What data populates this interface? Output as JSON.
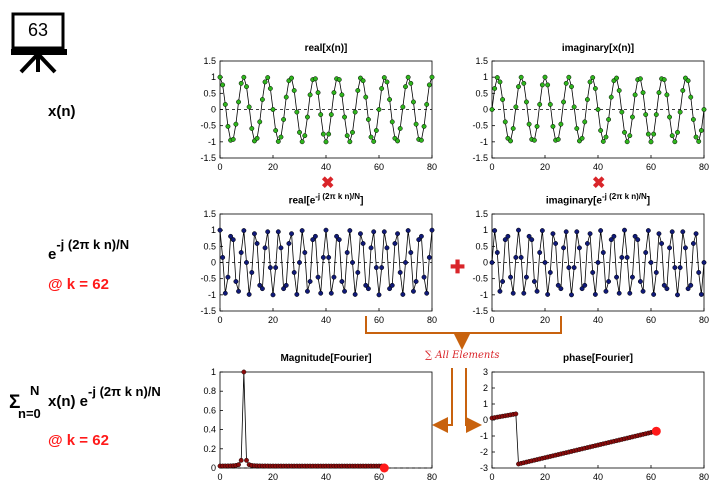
{
  "slide_number": "63",
  "row_labels": {
    "x": "x(n)",
    "kernel_base": "e",
    "kernel_exp": "-j (2π k n)/N",
    "k1": "@ k = 62",
    "sum_sigma": "Σ",
    "sum_top": "N",
    "sum_bottom": "n=0",
    "sum_term": "x(n) e",
    "sum_exp": "-j (2π k n)/N",
    "k2": "@ k = 62"
  },
  "operators": {
    "multiply": "✖",
    "add": "✚",
    "sum_label": "∑ All Elements"
  },
  "plot_titles": {
    "real_x": "real[x(n)]",
    "imag_x": "imaginary[x(n)]",
    "real_e_pre": "real[e",
    "real_e_exp": "-j (2π k n)/N",
    "real_e_post": "]",
    "imag_e_pre": "imaginary[e",
    "imag_e_exp": "-j (2π k n)/N",
    "imag_e_post": "]",
    "mag": "Magnitude[Fourier]",
    "phase": "phase[Fourier]"
  },
  "colors": {
    "green": "#2fb51d",
    "navy": "#101a78",
    "darkred": "#8b0c0c",
    "brightred": "#ff1a1a",
    "arrow": "#c8620e"
  },
  "chart_data": [
    {
      "type": "scatter",
      "x_range": [
        0,
        80
      ],
      "ylim": [
        -1.5,
        1.5
      ],
      "yticks": [
        "1.5",
        "1",
        "0.5",
        "0",
        "-0.5",
        "-1",
        "-1.5"
      ],
      "xticks": [
        "0",
        "20",
        "40",
        "60",
        "80"
      ],
      "signal": "cos(2π·9n/80)"
    },
    {
      "type": "scatter",
      "x_range": [
        0,
        80
      ],
      "ylim": [
        -1.5,
        1.5
      ],
      "yticks": [
        "1.5",
        "1",
        "0.5",
        "0",
        "-0.5",
        "-1",
        "-1.5"
      ],
      "xticks": [
        "0",
        "20",
        "40",
        "60",
        "80"
      ],
      "signal": "sin(2π·9n/80)"
    },
    {
      "type": "scatter",
      "x_range": [
        0,
        80
      ],
      "ylim": [
        -1.5,
        1.5
      ],
      "yticks": [
        "1.5",
        "1",
        "0.5",
        "0",
        "-0.5",
        "-1",
        "-1.5"
      ],
      "xticks": [
        "0",
        "20",
        "40",
        "60",
        "80"
      ],
      "signal": "cos(2π·62n/80)"
    },
    {
      "type": "scatter",
      "x_range": [
        0,
        80
      ],
      "ylim": [
        -1.5,
        1.5
      ],
      "yticks": [
        "1.5",
        "1",
        "0.5",
        "0",
        "-0.5",
        "-1",
        "-1.5"
      ],
      "xticks": [
        "0",
        "20",
        "40",
        "60",
        "80"
      ],
      "signal": "-sin(2π·62n/80)"
    },
    {
      "type": "scatter",
      "x_range": [
        0,
        80
      ],
      "ylim": [
        0,
        1
      ],
      "yticks": [
        "1",
        "0.8",
        "0.6",
        "0.4",
        "0.2",
        "0"
      ],
      "xticks": [
        "0",
        "20",
        "40",
        "60",
        "80"
      ],
      "peak_k": 9,
      "peak_value": 1.0,
      "current_k": 62,
      "current_value": 0.0
    },
    {
      "type": "scatter",
      "x_range": [
        0,
        80
      ],
      "ylim": [
        -3,
        3
      ],
      "yticks": [
        "3",
        "2",
        "1",
        "0",
        "-1",
        "-2",
        "-3"
      ],
      "xticks": [
        "0",
        "20",
        "40",
        "60",
        "80"
      ],
      "phase_start": 0.12,
      "phase_jump_k": 9,
      "phase_after_jump": -2.75,
      "current_k": 62,
      "current_value": -0.7
    }
  ]
}
